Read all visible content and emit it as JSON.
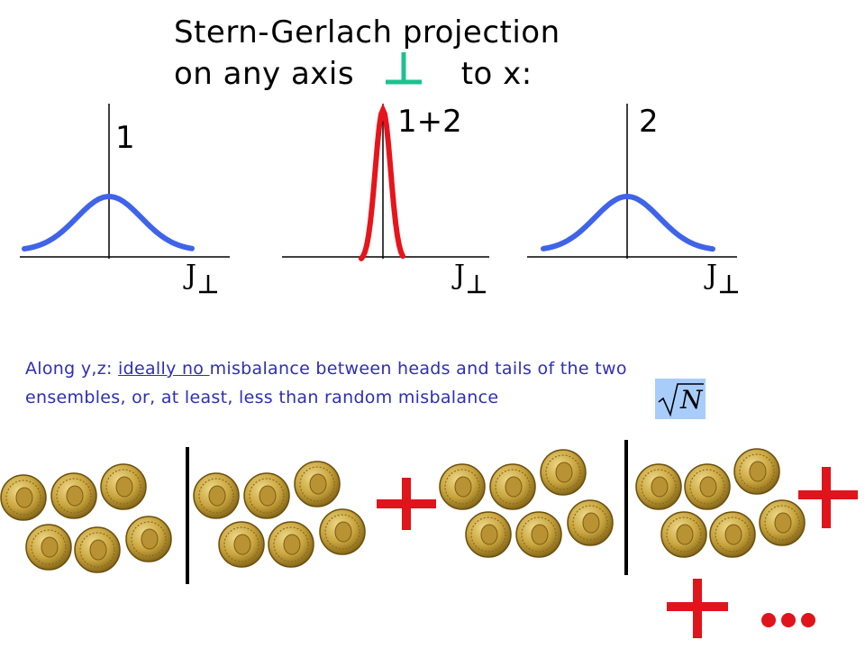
{
  "title": {
    "line1": "Stern-Gerlach projection",
    "line2_prefix": "on any axis",
    "line2_suffix": "to x:"
  },
  "plots": [
    {
      "label": "1",
      "axis_label": "J",
      "curve": "broad",
      "color": "#3f64ea"
    },
    {
      "label": "1+2",
      "axis_label": "J",
      "curve": "narrow",
      "color": "#e8141b"
    },
    {
      "label": "2",
      "axis_label": "J",
      "curve": "broad",
      "color": "#3f64ea"
    }
  ],
  "caption": {
    "line1_a": "Along y,z: ",
    "line1_u": "ideally no ",
    "line1_b": "misbalance between heads and tails of the two",
    "line2": "ensembles, or, at least, less than random misbalance",
    "sqrt_label": "N"
  },
  "colors": {
    "perp_mark": "#1fc08f",
    "caption_text": "#2e2eb8",
    "plus": "#e0141b",
    "dots": "#e0141b",
    "highlight_box": "#a9cdfb"
  },
  "icons": [
    "coin-icon",
    "plus-icon",
    "ellipsis-dots-icon",
    "perpendicular-icon"
  ]
}
